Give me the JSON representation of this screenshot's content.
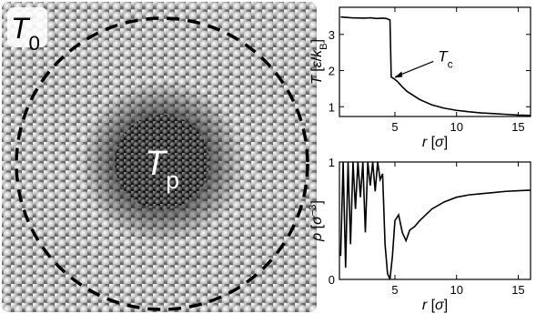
{
  "snapshot": {
    "outer_label": [
      {
        "t": "T",
        "i": true
      },
      {
        "t": "0",
        "sub": true
      }
    ],
    "inner_label": [
      {
        "t": "T",
        "i": true
      },
      {
        "t": "p",
        "sub": true
      }
    ]
  },
  "chart_data": [
    {
      "type": "line",
      "x": [
        0.6,
        1.5,
        2.5,
        3.0,
        3.5,
        4.0,
        4.3,
        4.6,
        4.7,
        4.9,
        5.2,
        5.6,
        6.0,
        7,
        8,
        9,
        10,
        11,
        12,
        13,
        14,
        15,
        16
      ],
      "series": [
        {
          "name": "T",
          "color": "#000000",
          "values": [
            3.48,
            3.46,
            3.45,
            3.46,
            3.44,
            3.45,
            3.44,
            3.4,
            1.82,
            1.78,
            1.7,
            1.55,
            1.42,
            1.2,
            1.05,
            0.96,
            0.9,
            0.86,
            0.83,
            0.81,
            0.79,
            0.77,
            0.76
          ]
        }
      ],
      "xlim": [
        0.5,
        16
      ],
      "xticks": [
        5,
        10,
        15
      ],
      "ylim": [
        0.73,
        3.75
      ],
      "yticks": [
        1,
        2,
        3
      ],
      "xlabel": [
        {
          "t": "r",
          "i": true
        },
        {
          "t": " ["
        },
        {
          "t": "σ",
          "i": true
        },
        {
          "t": "]"
        }
      ],
      "ylabel": [
        {
          "t": "T",
          "i": true
        },
        {
          "t": " ["
        },
        {
          "t": "ε",
          "i": true
        },
        {
          "t": "/"
        },
        {
          "t": "k",
          "i": true
        },
        {
          "t": "B",
          "sub": true
        },
        {
          "t": "]"
        }
      ],
      "annotation": {
        "text": [
          {
            "t": "T",
            "i": true
          },
          {
            "t": "c",
            "sub": true
          }
        ],
        "x": 4.8,
        "y": 1.8
      }
    },
    {
      "type": "line",
      "x": [
        0.6,
        0.8,
        1.0,
        1.2,
        1.4,
        1.6,
        1.8,
        2.0,
        2.2,
        2.4,
        2.6,
        2.8,
        3.0,
        3.2,
        3.4,
        3.6,
        3.8,
        4.0,
        4.2,
        4.4,
        4.6,
        4.8,
        5.0,
        5.3,
        5.6,
        5.9,
        6.2,
        6.6,
        7,
        8,
        9,
        10,
        11,
        12,
        13,
        14,
        15,
        16
      ],
      "series": [
        {
          "name": "ρ",
          "color": "#000000",
          "values": [
            0.2,
            1,
            0.1,
            1,
            0.3,
            1,
            0.6,
            1,
            0.7,
            1,
            0.4,
            1,
            0.8,
            1,
            0.75,
            1,
            0.85,
            0.9,
            0.3,
            0.05,
            0,
            0.2,
            0.5,
            0.55,
            0.4,
            0.33,
            0.42,
            0.45,
            0.5,
            0.6,
            0.66,
            0.7,
            0.72,
            0.73,
            0.74,
            0.75,
            0.755,
            0.76
          ]
        }
      ],
      "xlim": [
        0.5,
        16
      ],
      "xticks": [
        5,
        10,
        15
      ],
      "ylim": [
        0,
        1
      ],
      "yticks": [
        0,
        1
      ],
      "xlabel": [
        {
          "t": "r",
          "i": true
        },
        {
          "t": " ["
        },
        {
          "t": "σ",
          "i": true
        },
        {
          "t": "]"
        }
      ],
      "ylabel": [
        {
          "t": "ρ",
          "i": true
        },
        {
          "t": " ["
        },
        {
          "t": "σ",
          "i": true
        },
        {
          "t": "−3",
          "sup": true
        },
        {
          "t": "]"
        }
      ]
    }
  ]
}
